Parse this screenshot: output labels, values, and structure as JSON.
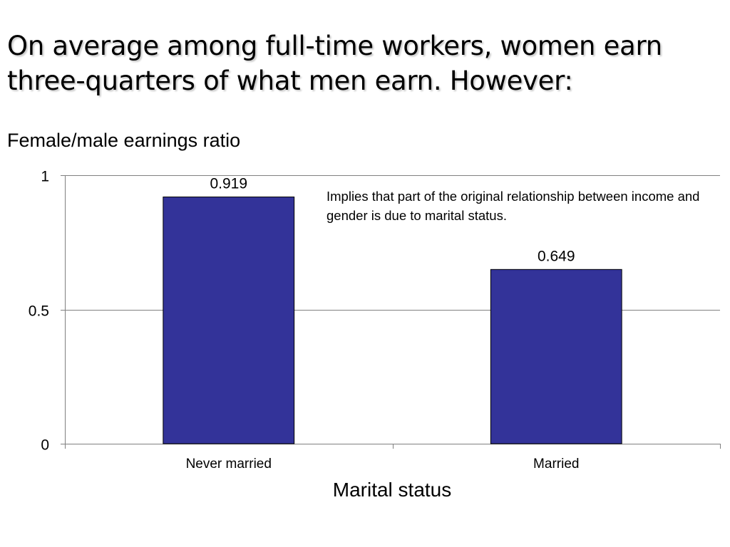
{
  "slide": {
    "title": "On average among full-time workers, women earn three-quarters of what men earn. However:",
    "annotation": "Implies that part of the original relationship between income and gender is due to marital status."
  },
  "colors": {
    "bar_fill": "#333399",
    "bar_stroke": "#000000",
    "grid": "#808080",
    "axis": "#808080"
  },
  "chart_data": {
    "type": "bar",
    "categories": [
      "Never married",
      "Married"
    ],
    "values": [
      0.919,
      0.649
    ],
    "value_labels": [
      "0.919",
      "0.649"
    ],
    "title": "",
    "ylabel": "Female/male earnings ratio",
    "xlabel": "Marital status",
    "ylim": [
      0,
      1
    ],
    "yticks": [
      0,
      0.5,
      1
    ],
    "ytick_labels": [
      "0",
      "0.5",
      "1"
    ],
    "grid": true,
    "legend": "none"
  }
}
